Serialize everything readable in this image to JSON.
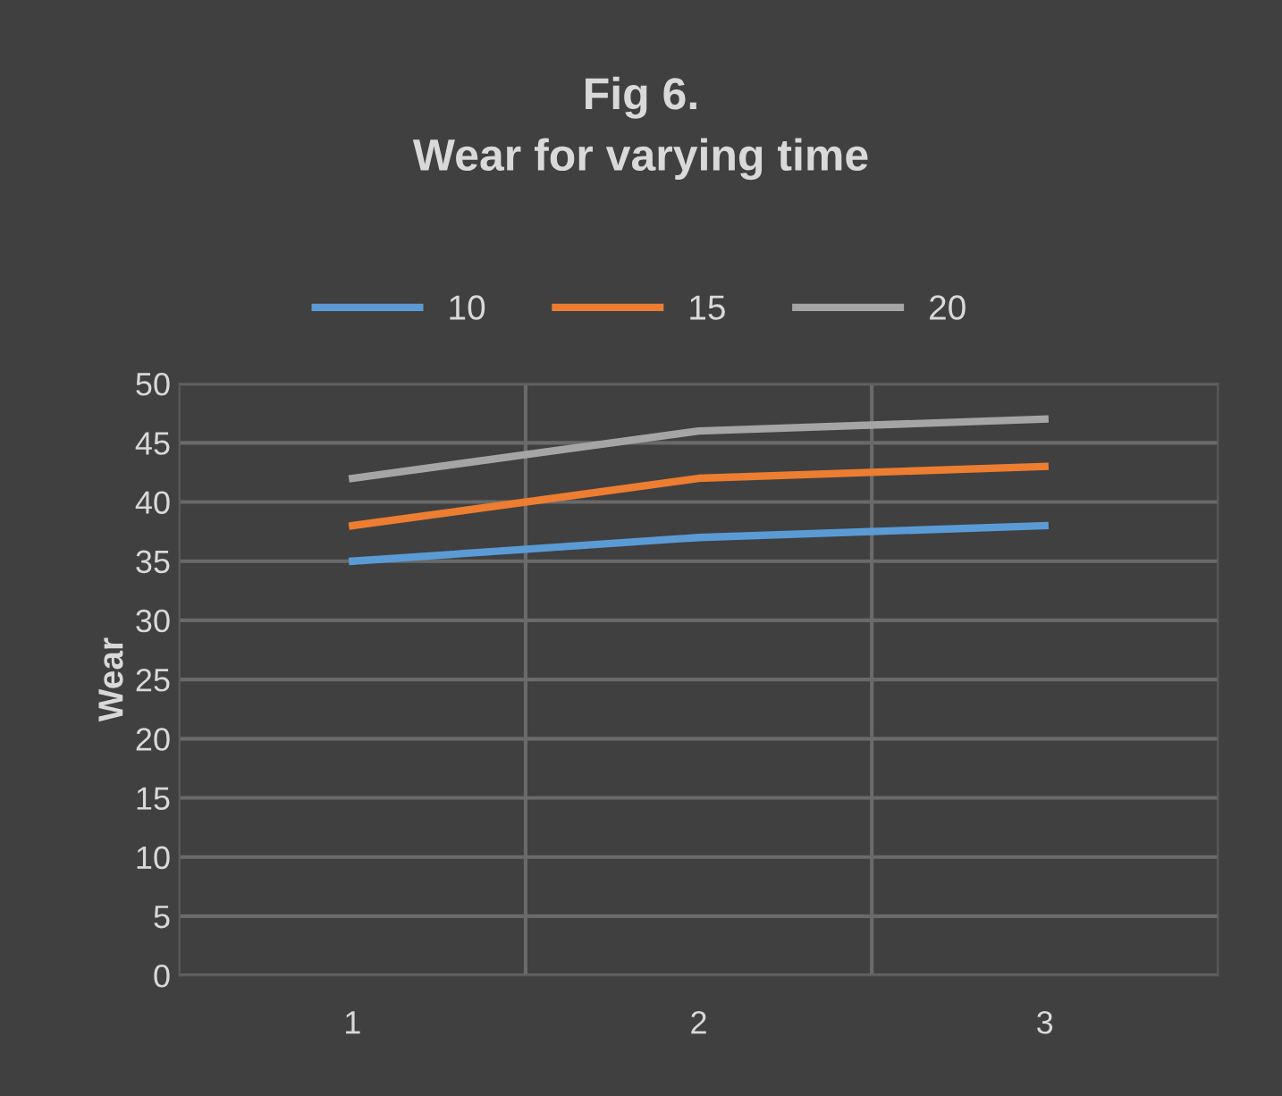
{
  "chart_data": {
    "type": "line",
    "title": "Fig 6.\nWear for varying time",
    "ylabel": "Wear",
    "categories": [
      "1",
      "2",
      "3"
    ],
    "series": [
      {
        "name": "10",
        "color": "#5b9bd5",
        "values": [
          35,
          37,
          38
        ]
      },
      {
        "name": "15",
        "color": "#ed7d31",
        "values": [
          38,
          42,
          43
        ]
      },
      {
        "name": "20",
        "color": "#a5a5a5",
        "values": [
          42,
          46,
          47
        ]
      }
    ],
    "ylim": [
      0,
      50
    ],
    "yticks": [
      0,
      5,
      10,
      15,
      20,
      25,
      30,
      35,
      40,
      45,
      50
    ],
    "grid": true,
    "legend": "top",
    "marker": "none",
    "line_style": "solid"
  }
}
